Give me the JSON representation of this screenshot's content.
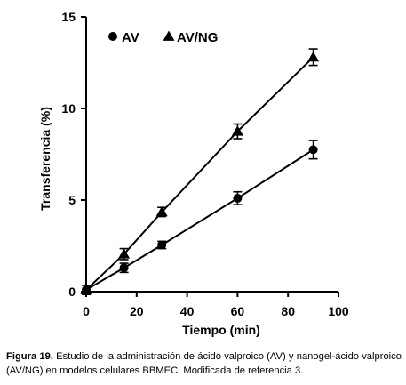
{
  "chart_data": {
    "type": "line",
    "title": "",
    "xlabel": "Tiempo (min)",
    "ylabel": "Transferencia (%)",
    "xlim": [
      0,
      100
    ],
    "ylim": [
      0,
      15
    ],
    "x_ticks": [
      "0",
      "20",
      "40",
      "60",
      "80",
      "100"
    ],
    "y_ticks": [
      "0",
      "5",
      "10",
      "15"
    ],
    "legend_position": "top-left",
    "grid": false,
    "series": [
      {
        "name": "AV",
        "marker": "circle",
        "color": "#000000",
        "x": [
          0,
          15,
          30,
          60,
          90
        ],
        "y": [
          0.1,
          1.3,
          2.55,
          5.1,
          7.75
        ],
        "err": [
          0.25,
          0.25,
          0.2,
          0.35,
          0.5
        ]
      },
      {
        "name": "AV/NG",
        "marker": "triangle",
        "color": "#000000",
        "x": [
          0,
          15,
          30,
          60,
          90
        ],
        "y": [
          0.1,
          2.05,
          4.35,
          8.75,
          12.8
        ],
        "err": [
          0.25,
          0.3,
          0.25,
          0.4,
          0.45
        ]
      }
    ]
  },
  "caption": {
    "label": "Figura 19.",
    "text": " Estudio de la administración de ácido valproico (AV) y nanogel-ácido valproico (AV/NG) en modelos celulares BBMEC. Modificada de referencia 3."
  }
}
